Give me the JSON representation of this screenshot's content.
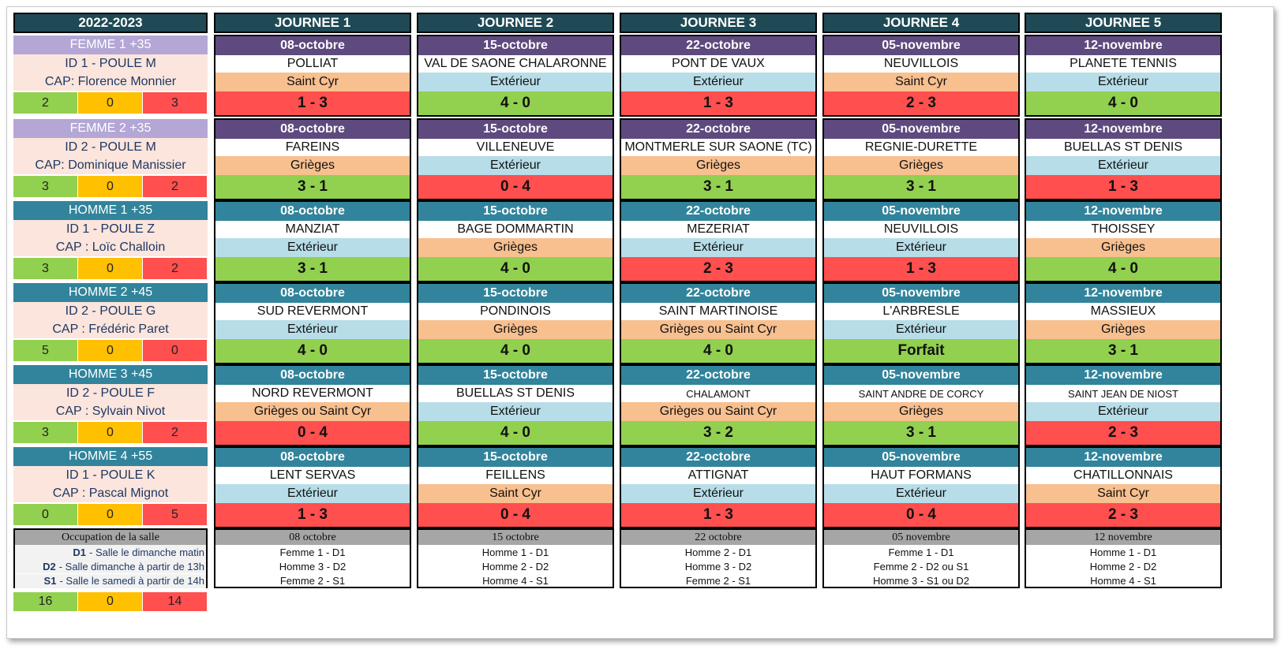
{
  "season": "2022-2023",
  "journees": [
    "JOURNEE 1",
    "JOURNEE 2",
    "JOURNEE 3",
    "JOURNEE 4",
    "JOURNEE 5"
  ],
  "colors": {
    "femme_header": "#b4a7d6",
    "homme_header": "#31849b",
    "femme_date": "#5e4a7e",
    "homme_date": "#31849b",
    "win": "#92d050",
    "draw": "#ffc000",
    "loss": "#ff4f4f",
    "exterieur": "#b7dde8",
    "domicile": "#f8bf8f"
  },
  "teams": [
    {
      "name": "FEMME 1 +35",
      "kind": "femme",
      "poule": "ID 1 - POULE M",
      "cap": "CAP: Florence Monnier",
      "stats": [
        "2",
        "0",
        "3"
      ],
      "matches": [
        {
          "date": "08-octobre",
          "opponent": "POLLIAT",
          "location": "Saint Cyr",
          "score": "1 - 3",
          "result": "l"
        },
        {
          "date": "15-octobre",
          "opponent": "VAL DE SAONE CHALARONNE",
          "location": "Extérieur",
          "score": "4 - 0",
          "result": "w"
        },
        {
          "date": "22-octobre",
          "opponent": "PONT DE VAUX",
          "location": "Extérieur",
          "score": "1 - 3",
          "result": "l"
        },
        {
          "date": "05-novembre",
          "opponent": "NEUVILLOIS",
          "location": "Saint Cyr",
          "score": "2 - 3",
          "result": "l"
        },
        {
          "date": "12-novembre",
          "opponent": "PLANETE TENNIS",
          "location": "Extérieur",
          "score": "4 - 0",
          "result": "w"
        }
      ]
    },
    {
      "name": "FEMME 2 +35",
      "kind": "femme",
      "poule": "ID 2 - POULE M",
      "cap": "CAP: Dominique Manissier",
      "stats": [
        "3",
        "0",
        "2"
      ],
      "matches": [
        {
          "date": "08-octobre",
          "opponent": "FAREINS",
          "location": "Grièges",
          "score": "3 - 1",
          "result": "w"
        },
        {
          "date": "15-octobre",
          "opponent": "VILLENEUVE",
          "location": "Extérieur",
          "score": "0 - 4",
          "result": "l"
        },
        {
          "date": "22-octobre",
          "opponent": "MONTMERLE SUR SAONE (TC)",
          "location": "Grièges",
          "score": "3 - 1",
          "result": "w"
        },
        {
          "date": "05-novembre",
          "opponent": "REGNIE-DURETTE",
          "location": "Grièges",
          "score": "3 - 1",
          "result": "w"
        },
        {
          "date": "12-novembre",
          "opponent": "BUELLAS ST DENIS",
          "location": "Extérieur",
          "score": "1 - 3",
          "result": "l"
        }
      ]
    },
    {
      "name": "HOMME 1 +35",
      "kind": "homme",
      "poule": "ID 1 - POULE Z",
      "cap": "CAP : Loïc Challoin",
      "stats": [
        "3",
        "0",
        "2"
      ],
      "matches": [
        {
          "date": "08-octobre",
          "opponent": "MANZIAT",
          "location": "Extérieur",
          "score": "3 - 1",
          "result": "w"
        },
        {
          "date": "15-octobre",
          "opponent": "BAGE DOMMARTIN",
          "location": "Grièges",
          "score": "4 - 0",
          "result": "w"
        },
        {
          "date": "22-octobre",
          "opponent": "MEZERIAT",
          "location": "Extérieur",
          "score": "2 - 3",
          "result": "l"
        },
        {
          "date": "05-novembre",
          "opponent": "NEUVILLOIS",
          "location": "Extérieur",
          "score": "1 - 3",
          "result": "l"
        },
        {
          "date": "12-novembre",
          "opponent": "THOISSEY",
          "location": "Grièges",
          "score": "4 - 0",
          "result": "w"
        }
      ]
    },
    {
      "name": "HOMME 2 +45",
      "kind": "homme",
      "poule": "ID 2 - POULE G",
      "cap": "CAP : Frédéric Paret",
      "stats": [
        "5",
        "0",
        "0"
      ],
      "matches": [
        {
          "date": "08-octobre",
          "opponent": "SUD REVERMONT",
          "location": "Extérieur",
          "score": "4 - 0",
          "result": "w"
        },
        {
          "date": "15-octobre",
          "opponent": "PONDINOIS",
          "location": "Grièges",
          "score": "4 - 0",
          "result": "w"
        },
        {
          "date": "22-octobre",
          "opponent": "SAINT MARTINOISE",
          "location": "Grièges ou Saint Cyr",
          "score": "4 - 0",
          "result": "w"
        },
        {
          "date": "05-novembre",
          "opponent": "L'ARBRESLE",
          "location": "Extérieur",
          "score": "Forfait",
          "result": "w"
        },
        {
          "date": "12-novembre",
          "opponent": "MASSIEUX",
          "location": "Grièges",
          "score": "3 - 1",
          "result": "w"
        }
      ]
    },
    {
      "name": "HOMME 3 +45",
      "kind": "homme",
      "poule": "ID 2 - POULE F",
      "cap": "CAP : Sylvain Nivot",
      "stats": [
        "3",
        "0",
        "2"
      ],
      "matches": [
        {
          "date": "08-octobre",
          "opponent": "NORD REVERMONT",
          "location": "Grièges ou Saint Cyr",
          "score": "0 - 4",
          "result": "l"
        },
        {
          "date": "15-octobre",
          "opponent": "BUELLAS ST DENIS",
          "location": "Extérieur",
          "score": "4 - 0",
          "result": "w"
        },
        {
          "date": "22-octobre",
          "opponent": "CHALAMONT",
          "location": "Grièges ou Saint Cyr",
          "score": "3 - 2",
          "result": "w",
          "small": true
        },
        {
          "date": "05-novembre",
          "opponent": "SAINT ANDRE DE CORCY",
          "location": "Grièges",
          "score": "3 - 1",
          "result": "w",
          "small": true
        },
        {
          "date": "12-novembre",
          "opponent": "SAINT JEAN DE NIOST",
          "location": "Extérieur",
          "score": "2 - 3",
          "result": "l",
          "small": true
        }
      ]
    },
    {
      "name": "HOMME 4 +55",
      "kind": "homme",
      "poule": "ID 1 - POULE K",
      "cap": "CAP : Pascal Mignot",
      "stats": [
        "0",
        "0",
        "5"
      ],
      "matches": [
        {
          "date": "08-octobre",
          "opponent": "LENT SERVAS",
          "location": "Extérieur",
          "score": "1 - 3",
          "result": "l"
        },
        {
          "date": "15-octobre",
          "opponent": "FEILLENS",
          "location": "Saint Cyr",
          "score": "0 - 4",
          "result": "l"
        },
        {
          "date": "22-octobre",
          "opponent": "ATTIGNAT",
          "location": "Extérieur",
          "score": "1 - 3",
          "result": "l"
        },
        {
          "date": "05-novembre",
          "opponent": "HAUT FORMANS",
          "location": "Extérieur",
          "score": "0 - 4",
          "result": "l"
        },
        {
          "date": "12-novembre",
          "opponent": "CHATILLONNAIS",
          "location": "Saint Cyr",
          "score": "2 - 3",
          "result": "l"
        }
      ]
    }
  ],
  "occupation": {
    "title": "Occupation de la salle",
    "legend": [
      {
        "code": "D1",
        "text": "- Salle le dimanche matin"
      },
      {
        "code": "D2",
        "text": "- Salle dimanche à partir de 13h"
      },
      {
        "code": "S1",
        "text": "- Salle le samedi à partir de 14h"
      }
    ],
    "days": [
      {
        "date": "08 octobre",
        "lines": [
          "Femme 1  - D1",
          "Homme 3 - D2",
          "Femme 2 - S1"
        ]
      },
      {
        "date": "15 octobre",
        "lines": [
          "Homme 1 - D1",
          "Homme 2 - D2",
          "Homme 4 - S1"
        ]
      },
      {
        "date": "22 octobre",
        "lines": [
          "Homme 2 - D1",
          "Homme 3 - D2",
          "Femme 2 - S1"
        ]
      },
      {
        "date": "05 novembre",
        "lines": [
          "Femme 1 - D1",
          "Femme 2 - D2 ou S1",
          "Homme 3 - S1 ou D2"
        ]
      },
      {
        "date": "12 novembre",
        "lines": [
          "Homme 1 - D1",
          "Homme 2 - D2",
          "Homme 4 - S1"
        ]
      }
    ]
  },
  "totals": [
    "16",
    "0",
    "14"
  ]
}
